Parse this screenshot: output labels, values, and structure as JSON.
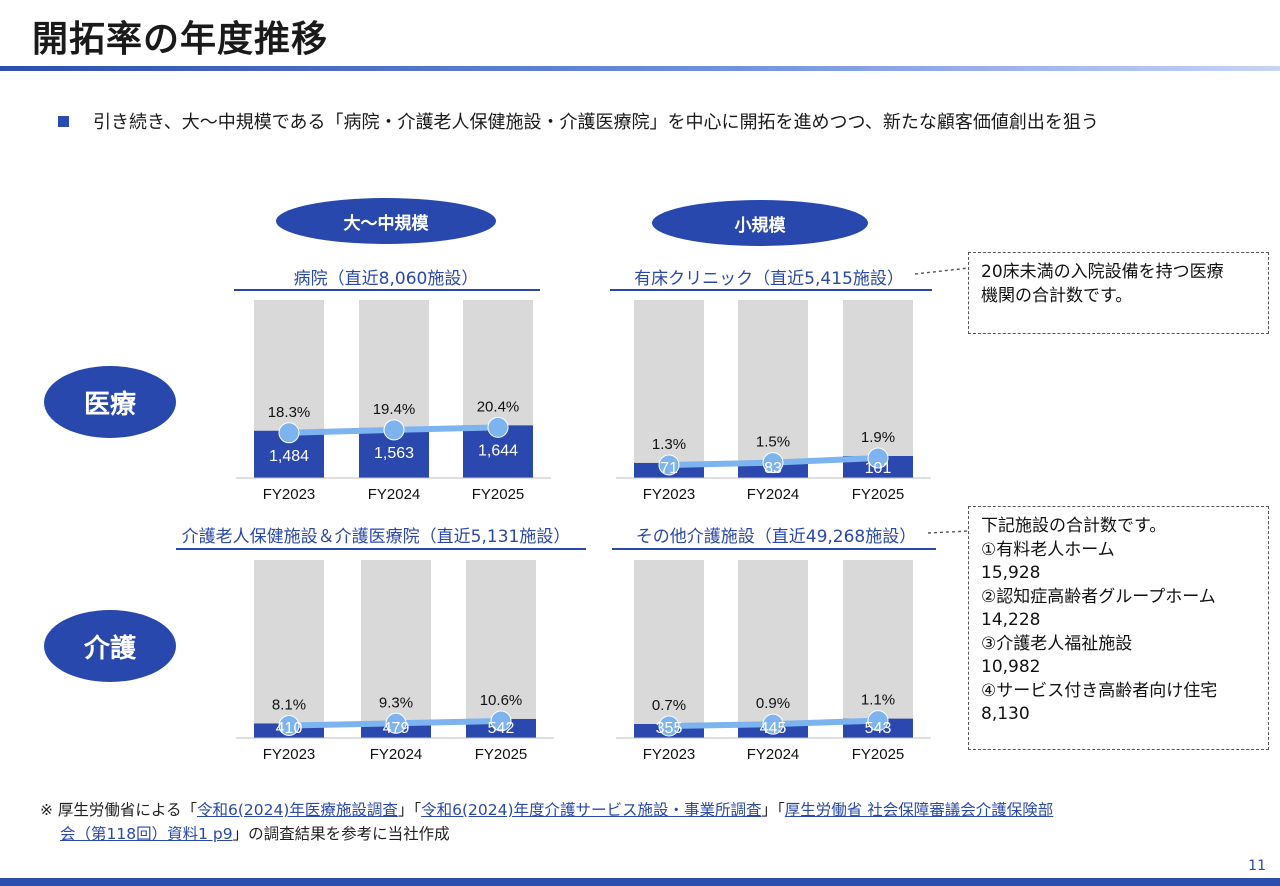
{
  "title": "開拓率の年度推移",
  "lead": "引き続き、大～中規模である「病院・介護老人保健施設・介護医療院」を中心に開拓を進めつつ、新たな顧客価値創出を狙う",
  "headers": {
    "large_mid": "大～中規模",
    "small": "小規模",
    "medical": "医療",
    "care": "介護"
  },
  "notes": {
    "clinic": [
      "20床未満の入院設備を持つ医療",
      "機関の合計数です。"
    ],
    "other_care": [
      "下記施設の合計数です。",
      "①有料老人ホーム",
      "15,928",
      "②認知症高齢者グループホーム",
      "14,228",
      "③介護老人福祉施設",
      "10,982",
      "④サービス付き高齢者向け住宅",
      "8,130"
    ]
  },
  "colors": {
    "bar_bg": "#d9d9d9",
    "bar_fg": "#2a48ad",
    "line": "#7db4ef",
    "accent": "#2a48a8"
  },
  "chart_data": [
    {
      "type": "bar",
      "title": "病院（直近8,060施設）",
      "categories": [
        "FY2023",
        "FY2024",
        "FY2025"
      ],
      "total": 8060,
      "values": [
        1484,
        1563,
        1644
      ],
      "value_labels": [
        "1,484",
        "1,563",
        "1,644"
      ],
      "rates": [
        18.3,
        19.4,
        20.4
      ],
      "rate_labels": [
        "18.3%",
        "19.4%",
        "20.4%"
      ]
    },
    {
      "type": "bar",
      "title": "有床クリニック（直近5,415施設）",
      "categories": [
        "FY2023",
        "FY2024",
        "FY2025"
      ],
      "total": 5415,
      "values": [
        71,
        83,
        101
      ],
      "value_labels": [
        "71",
        "83",
        "101"
      ],
      "rates": [
        1.3,
        1.5,
        1.9
      ],
      "rate_labels": [
        "1.3%",
        "1.5%",
        "1.9%"
      ]
    },
    {
      "type": "bar",
      "title": "介護老人保健施設＆介護医療院（直近5,131施設）",
      "categories": [
        "FY2023",
        "FY2024",
        "FY2025"
      ],
      "total": 5131,
      "values": [
        410,
        479,
        542
      ],
      "value_labels": [
        "410",
        "479",
        "542"
      ],
      "rates": [
        8.1,
        9.3,
        10.6
      ],
      "rate_labels": [
        "8.1%",
        "9.3%",
        "10.6%"
      ]
    },
    {
      "type": "bar",
      "title": "その他介護施設（直近49,268施設）",
      "categories": [
        "FY2023",
        "FY2024",
        "FY2025"
      ],
      "total": 49268,
      "values": [
        355,
        445,
        543
      ],
      "value_labels": [
        "355",
        "445",
        "543"
      ],
      "rates": [
        0.7,
        0.9,
        1.1
      ],
      "rate_labels": [
        "0.7%",
        "0.9%",
        "1.1%"
      ]
    }
  ],
  "footer": {
    "prefix": "※ 厚生労働省による「",
    "ref1": "令和6(2024)年医療施設調査",
    "sep1": "」「",
    "ref2": "令和6(2024)年度介護サービス施設・事業所調査",
    "sep2": "」「",
    "ref3a": "厚生労働省 社会保障審議会介護保険部",
    "ref3b": "会（第118回）資料1 p9",
    "suffix": "」の調査結果を参考に当社作成"
  },
  "page_number": "11"
}
